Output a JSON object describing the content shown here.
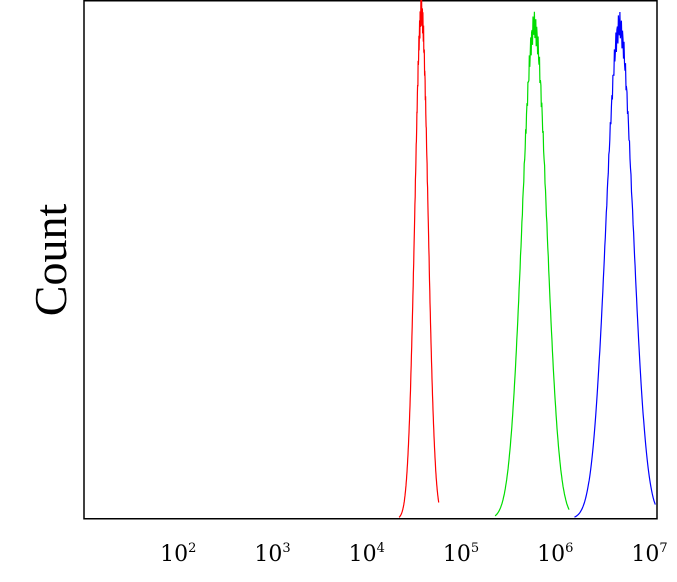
{
  "chart_data": {
    "type": "line",
    "title": "",
    "xlabel": "",
    "ylabel": "Count",
    "x_scale": "log",
    "xlim": [
      10,
      12000000
    ],
    "ylim": [
      0,
      1.02
    ],
    "grid": false,
    "legend": "none",
    "x_ticks": [
      {
        "value": 100,
        "base": "10",
        "exp": "2"
      },
      {
        "value": 1000,
        "base": "10",
        "exp": "3"
      },
      {
        "value": 10000,
        "base": "10",
        "exp": "4"
      },
      {
        "value": 100000,
        "base": "10",
        "exp": "5"
      },
      {
        "value": 1000000,
        "base": "10",
        "exp": "6"
      },
      {
        "value": 10000000,
        "base": "10",
        "exp": "7"
      }
    ],
    "series": [
      {
        "color": "#ff0000",
        "peak_x": 38000,
        "peak_height": 1.0,
        "x_min": 22000,
        "x_max": 58000
      },
      {
        "color": "#00dd00",
        "peak_x": 600000,
        "peak_height": 0.97,
        "x_min": 230000,
        "x_max": 1400000
      },
      {
        "color": "#0000ff",
        "peak_x": 4800000,
        "peak_height": 0.97,
        "x_min": 1600000,
        "x_max": 11500000
      }
    ]
  }
}
